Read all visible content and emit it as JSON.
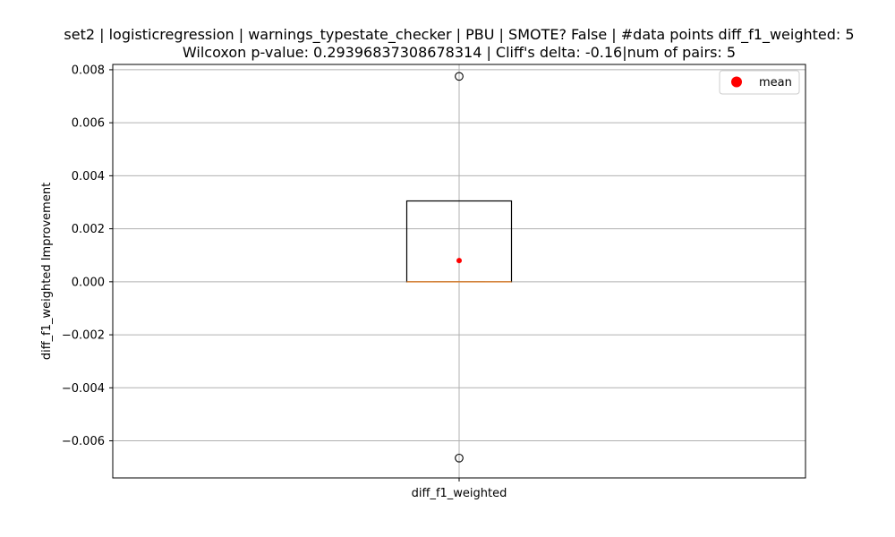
{
  "chart_data": {
    "type": "box",
    "title": [
      "set2 | logisticregression | warnings_typestate_checker | PBU | SMOTE? False | #data points diff_f1_weighted: 5",
      "Wilcoxon p-value: 0.29396837308678314 | Cliff's delta: -0.16|num of pairs: 5"
    ],
    "xlabel": "",
    "ylabel": "diff_f1_weighted Improvement",
    "categories": [
      "diff_f1_weighted"
    ],
    "ylim": [
      -0.0074,
      0.0082
    ],
    "yticks": [
      -0.006,
      -0.004,
      -0.002,
      0.0,
      0.002,
      0.004,
      0.006,
      0.008
    ],
    "ytick_labels": [
      "−0.006",
      "−0.004",
      "−0.002",
      "0.000",
      "0.002",
      "0.004",
      "0.006",
      "0.008"
    ],
    "grid": true,
    "box": {
      "q1": 0.0,
      "median": 0.0,
      "q3": 0.00305,
      "whisker_low": 0.0,
      "whisker_high": 0.00305,
      "mean": 0.0008,
      "outliers": [
        0.00775,
        -0.00665
      ]
    },
    "legend": {
      "position": "top-right",
      "entries": [
        {
          "label": "mean",
          "color": "#ff0000"
        }
      ]
    },
    "colors": {
      "median": "#e08a3c",
      "mean": "#ff0000",
      "box": "#000000",
      "grid": "#b0b0b0"
    }
  }
}
